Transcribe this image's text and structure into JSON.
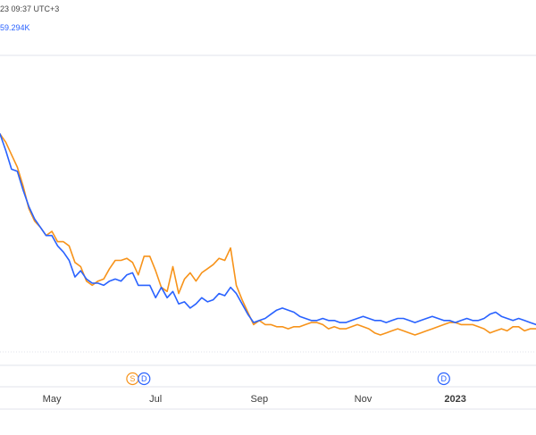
{
  "header": {
    "timestamp": "23 09:37 UTC+3",
    "value": "59.294K"
  },
  "colors": {
    "series_orange": "#f7931a",
    "series_blue": "#2962ff",
    "grid": "#e0e3eb",
    "axis_text": "#3b3b3b"
  },
  "events": [
    {
      "label": "S",
      "color": "#f7931a",
      "x_index": 23
    },
    {
      "label": "D",
      "color": "#2962ff",
      "x_index": 25
    },
    {
      "label": "D",
      "color": "#2962ff",
      "x_index": 77
    }
  ],
  "chart_data": {
    "type": "line",
    "title": "",
    "xlabel": "",
    "ylabel": "",
    "x_ticks": [
      {
        "label": "May",
        "index": 9
      },
      {
        "label": "Jul",
        "index": 27
      },
      {
        "label": "Sep",
        "index": 45
      },
      {
        "label": "Nov",
        "index": 63
      },
      {
        "label": "2023",
        "index": 79,
        "bold": true
      }
    ],
    "x_count": 94,
    "ylim": [
      0,
      100
    ],
    "grid": false,
    "series": [
      {
        "color": "#f7931a",
        "values": [
          100,
          96,
          90,
          84,
          75,
          64,
          58,
          55,
          51,
          53,
          48,
          48,
          46,
          38,
          36,
          29,
          27,
          29,
          30,
          35,
          39,
          39,
          40,
          38,
          32,
          41,
          41,
          34,
          26,
          24,
          36,
          23,
          30,
          33,
          29,
          33,
          35,
          37,
          40,
          39,
          45,
          27,
          20,
          14,
          8,
          10,
          8,
          8,
          7,
          7,
          6,
          7,
          7,
          8,
          9,
          9,
          8,
          6,
          7,
          6,
          6,
          7,
          8,
          7,
          6,
          4,
          3,
          4,
          5,
          6,
          5,
          4,
          3,
          4,
          5,
          6,
          7,
          8,
          9,
          9,
          8,
          8,
          8,
          7,
          6,
          4,
          5,
          6,
          5,
          7,
          7,
          5,
          6,
          6
        ]
      },
      {
        "color": "#2962ff",
        "values": [
          100,
          92,
          83,
          82,
          73,
          65,
          59,
          55,
          51,
          51,
          46,
          43,
          39,
          31,
          34,
          30,
          28,
          28,
          27,
          29,
          30,
          29,
          32,
          33,
          27,
          27,
          27,
          21,
          26,
          21,
          24,
          18,
          19,
          16,
          18,
          21,
          19,
          20,
          23,
          22,
          26,
          23,
          18,
          13,
          9,
          10,
          11,
          13,
          15,
          16,
          15,
          14,
          12,
          11,
          10,
          10,
          11,
          10,
          10,
          9,
          9,
          10,
          11,
          12,
          11,
          10,
          10,
          9,
          10,
          11,
          11,
          10,
          9,
          10,
          11,
          12,
          11,
          10,
          10,
          9,
          10,
          11,
          10,
          10,
          11,
          13,
          14,
          12,
          11,
          10,
          11,
          10,
          9,
          8
        ]
      }
    ]
  }
}
